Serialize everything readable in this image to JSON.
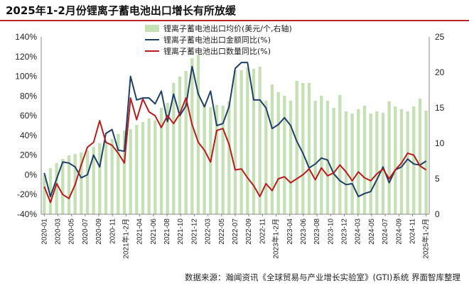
{
  "title": "2025年1-2月份锂离子蓄电池出口增长有所放缓",
  "source": "数据来源：瀚闻资讯《全球贸易与产业增长实验室》(GTI)系统  界面智库整理",
  "chart_data": {
    "type": "bar+line",
    "title": "2025年1-2月份锂离子蓄电池出口增长有所放缓",
    "x_labels": [
      "2020-01",
      "2020-03",
      "2020-05",
      "2020-07",
      "2020-09",
      "2020-11",
      "2021年1-2月",
      "2021-04",
      "2021-06",
      "2021-08",
      "2021-10",
      "2021-12",
      "2022-03",
      "2022-05",
      "2022-07",
      "2022-09",
      "2022-11",
      "2023年1-2月",
      "2023-04",
      "2023-06",
      "2023-08",
      "2023-10",
      "2023-12",
      "2024-03",
      "2024-05",
      "2024-07",
      "2024-09",
      "2024-11",
      "2025年1-2月"
    ],
    "left_axis": {
      "min": -40,
      "max": 140,
      "step": 20,
      "unit": "%",
      "ticks": [
        "-40%",
        "-20%",
        "0%",
        "20%",
        "40%",
        "60%",
        "80%",
        "100%",
        "120%",
        "140%"
      ]
    },
    "right_axis": {
      "min": 0,
      "max": 25,
      "step": 5,
      "ticks": [
        "0",
        "5",
        "10",
        "15",
        "20",
        "25"
      ]
    },
    "series": [
      {
        "name": "锂离子蓄电池出口均价(美元/个,右轴)",
        "type": "bar",
        "axis": "right",
        "color": "#c5e0b4",
        "values": [
          5.5,
          6.5,
          7.2,
          7.8,
          8.3,
          8.5,
          8.7,
          9,
          9.5,
          10,
          10.2,
          10.6,
          11.3,
          11.8,
          12,
          12.6,
          13,
          13.5,
          13.2,
          15,
          15.7,
          18.5,
          19.4,
          20.2,
          22,
          22.5,
          15.3,
          15.1,
          15.4,
          15.3,
          15.9,
          20.3,
          20.3,
          20.7,
          20.5,
          20.8,
          16,
          18.3,
          17.2,
          16.7,
          16,
          18.8,
          18.5,
          18.5,
          16,
          16.7,
          16,
          15,
          16.8,
          14.5,
          14.2,
          14.8,
          15.3,
          14.2,
          14.5,
          14.3,
          15.9,
          15.2,
          14.8,
          14.5,
          15.2,
          16.3,
          14.6
        ]
      },
      {
        "name": "锂离子蓄电池出口金额同比(%)",
        "type": "line",
        "axis": "left",
        "color": "#1f3f66",
        "values": [
          2,
          -22,
          -4,
          13,
          12,
          8,
          -3,
          0,
          20,
          8,
          42,
          46,
          25,
          24,
          100,
          76,
          78,
          78,
          72,
          85,
          54,
          82,
          60,
          70,
          110,
          82,
          69,
          85,
          50,
          52,
          69,
          108,
          114,
          114,
          76,
          76,
          68,
          47,
          51,
          58,
          50,
          34,
          22,
          7,
          11,
          17,
          15,
          1,
          -6,
          -10,
          -9,
          -22,
          -19,
          -17,
          -5,
          8,
          -8,
          5,
          8,
          16,
          11,
          10,
          14
        ]
      },
      {
        "name": "锂离子蓄电池出口数量同比(%)",
        "type": "line",
        "axis": "left",
        "color": "#b71c1c",
        "values": [
          -12,
          -28,
          -9,
          -20,
          -24,
          -10,
          10,
          28,
          33,
          55,
          33,
          30,
          22,
          12,
          78,
          56,
          77,
          64,
          60,
          48,
          60,
          52,
          62,
          78,
          51,
          33,
          25,
          13,
          45,
          47,
          31,
          5,
          6,
          -3,
          -11,
          -22,
          -9,
          -16,
          -4,
          -2,
          -8,
          -4,
          0,
          6,
          -5,
          7,
          -1,
          2,
          10,
          3,
          -6,
          3,
          -3,
          -6,
          1,
          6,
          -4,
          5,
          12,
          22,
          20,
          9,
          5
        ]
      }
    ],
    "legend_position": "top-center",
    "grid": false
  }
}
